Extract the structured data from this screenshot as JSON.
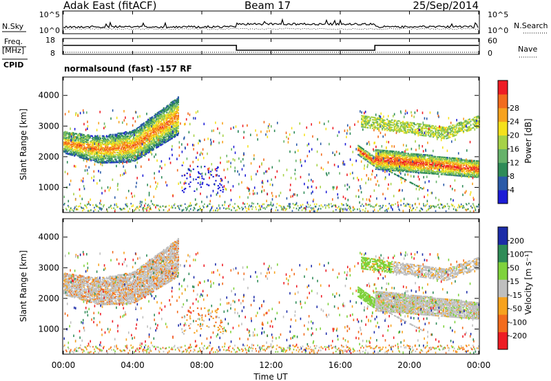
{
  "header": {
    "station": "Adak East (fitACF)",
    "beam": "Beam 17",
    "date": "25/Sep/2014"
  },
  "noise_panel": {
    "left_label": "N.Sky",
    "right_label": "N.Search",
    "ticks_left": [
      "10^5",
      "10^0"
    ],
    "ticks_right": [
      "10^5",
      "10^0"
    ]
  },
  "freq_panel": {
    "left_label_line1": "Freq.",
    "left_label_line2": "[MHz]",
    "right_label": "Nave",
    "ticks_left": [
      "18",
      "8"
    ],
    "ticks_right": [
      "60",
      "0"
    ]
  },
  "cpid": {
    "label": "CPID",
    "value": "normalsound (fast) -157 RF"
  },
  "time_axis": {
    "label": "Time UT",
    "ticks": [
      "00:00",
      "04:00",
      "08:00",
      "12:00",
      "16:00",
      "20:00",
      "00:00"
    ]
  },
  "colors": {
    "power": [
      "#1c1cd6",
      "#2a5aa8",
      "#2e8b57",
      "#66b26a",
      "#a6d247",
      "#f5e11c",
      "#f7a21e",
      "#f26b1d",
      "#ee1c24"
    ],
    "velocity": [
      "#ee1c24",
      "#f26b1d",
      "#f7a21e",
      "#bfbfbf",
      "#7fd23c",
      "#2e8b57",
      "#1c2ca8"
    ]
  },
  "chart_data": [
    {
      "type": "heatmap",
      "title": "Power",
      "xlabel": "Time UT",
      "ylabel": "Slant Range [km]",
      "xlim": [
        0,
        24
      ],
      "ylim": [
        180,
        4600
      ],
      "yticks": [
        "1000",
        "2000",
        "3000",
        "4000"
      ],
      "colorbar": {
        "label": "Power [dB]",
        "ticks": [
          "4",
          "8",
          "12",
          "16",
          "20",
          "24",
          "28"
        ],
        "range": [
          0,
          32
        ]
      },
      "features": [
        {
          "time_range": [
            "00:00",
            "06:30"
          ],
          "range_km": [
            2000,
            3500
          ],
          "description_value_db": 20
        },
        {
          "time_range": [
            "17:00",
            "24:00"
          ],
          "range_km": [
            1300,
            2500
          ],
          "description_value_db": 24
        },
        {
          "time_range": [
            "17:00",
            "24:00"
          ],
          "range_km": [
            2500,
            3400
          ],
          "description_value_db": 12
        }
      ]
    },
    {
      "type": "heatmap",
      "title": "Velocity",
      "xlabel": "Time UT",
      "ylabel": "Slant Range [km]",
      "xlim": [
        0,
        24
      ],
      "ylim": [
        180,
        4600
      ],
      "yticks": [
        "1000",
        "2000",
        "3000",
        "4000"
      ],
      "colorbar": {
        "label": "Velocity [m s⁻¹]",
        "ticks": [
          "200",
          "100",
          "50",
          "15",
          "-15",
          "-50",
          "-100",
          "-200"
        ],
        "range": [
          -250,
          250
        ]
      }
    }
  ]
}
